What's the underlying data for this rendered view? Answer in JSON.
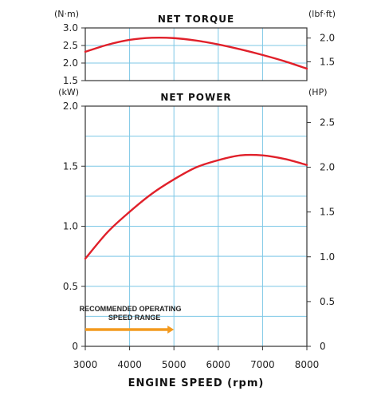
{
  "chart_data": [
    {
      "type": "line",
      "title": "NET TORQUE",
      "xlabel": "ENGINE SPEED (rpm)",
      "y_left_unit": "(N·m)",
      "y_right_unit": "(lbf·ft)",
      "xlim": [
        3000,
        8000
      ],
      "ylim": [
        1.5,
        3.0
      ],
      "y_right_lim": [
        1.106,
        2.213
      ],
      "y_left_ticks": [
        "3.0",
        "2.5",
        "2.0",
        "1.5"
      ],
      "y_left_tick_values": [
        3.0,
        2.5,
        2.0,
        1.5
      ],
      "y_right_ticks": [
        "2.0",
        "1.5"
      ],
      "y_right_tick_values": [
        2.0,
        1.5
      ],
      "grid": true,
      "series": [
        {
          "x": [
            3000,
            3500,
            4000,
            4500,
            5000,
            5500,
            6000,
            6500,
            7000,
            7500,
            8000
          ],
          "values": [
            2.32,
            2.52,
            2.66,
            2.72,
            2.71,
            2.64,
            2.53,
            2.39,
            2.23,
            2.05,
            1.84
          ],
          "color": "#e0202a"
        }
      ]
    },
    {
      "type": "line",
      "title": "NET POWER",
      "xlabel": "ENGINE SPEED (rpm)",
      "y_left_unit": "(kW)",
      "y_right_unit": "(HP)",
      "xlim": [
        3000,
        8000
      ],
      "ylim": [
        0,
        2.0
      ],
      "y_right_lim": [
        0,
        2.682
      ],
      "x_ticks": [
        "3000",
        "4000",
        "5000",
        "6000",
        "7000",
        "8000"
      ],
      "x_tick_values": [
        3000,
        4000,
        5000,
        6000,
        7000,
        8000
      ],
      "y_left_ticks": [
        "2.0",
        "1.5",
        "1.0",
        "0.5",
        "0"
      ],
      "y_left_tick_values": [
        2.0,
        1.5,
        1.0,
        0.5,
        0
      ],
      "y_right_ticks": [
        "2.5",
        "2.0",
        "1.5",
        "1.0",
        "0.5",
        "0"
      ],
      "y_right_tick_values": [
        2.5,
        2.0,
        1.5,
        1.0,
        0.5,
        0
      ],
      "grid": true,
      "series": [
        {
          "x": [
            3000,
            3500,
            4000,
            4500,
            5000,
            5500,
            6000,
            6500,
            7000,
            7500,
            8000
          ],
          "values": [
            0.73,
            0.95,
            1.12,
            1.27,
            1.39,
            1.49,
            1.55,
            1.59,
            1.59,
            1.56,
            1.51
          ],
          "color": "#e0202a"
        }
      ],
      "annotation": {
        "line1": "RECOMMENDED OPERATING",
        "line2": "SPEED RANGE",
        "range": [
          3000,
          5000
        ],
        "color": "#f39a1e"
      }
    }
  ]
}
